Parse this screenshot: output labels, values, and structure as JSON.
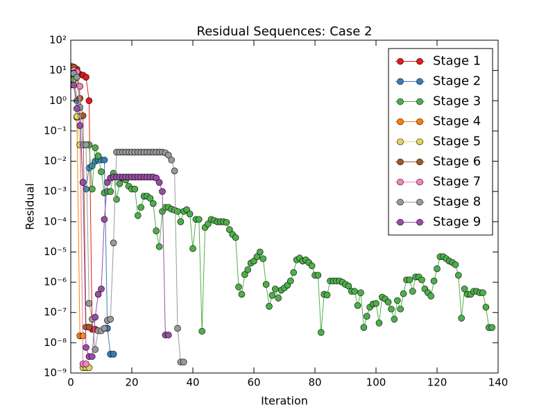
{
  "chart_data": {
    "type": "line",
    "title": "Residual Sequences: Case 2",
    "x_label": "Iteration",
    "y_label": "Residual",
    "log_y": true,
    "legend": "upper right",
    "xlim": [
      0,
      140
    ],
    "xticks": [
      0,
      20,
      40,
      60,
      80,
      100,
      120,
      140
    ],
    "ylim": [
      1e-09,
      100
    ],
    "yticks": [
      {
        "value": 1e-09,
        "label": "10⁻⁹"
      },
      {
        "value": 1e-08,
        "label": "10⁻⁸"
      },
      {
        "value": 1e-07,
        "label": "10⁻⁷"
      },
      {
        "value": 1e-06,
        "label": "10⁻⁶"
      },
      {
        "value": 1e-05,
        "label": "10⁻⁵"
      },
      {
        "value": 0.0001,
        "label": "10⁻⁴"
      },
      {
        "value": 0.001,
        "label": "10⁻³"
      },
      {
        "value": 0.01,
        "label": "10⁻²"
      },
      {
        "value": 0.1,
        "label": "10⁻¹"
      },
      {
        "value": 1,
        "label": "10⁰"
      },
      {
        "value": 10,
        "label": "10¹"
      },
      {
        "value": 100,
        "label": "10²"
      }
    ],
    "series": [
      {
        "name": "Stage 1",
        "color": "#e41a1c",
        "values": [
          13,
          13,
          11,
          7.5,
          7,
          6,
          1.0,
          2.8e-08,
          2.8e-08
        ]
      },
      {
        "name": "Stage 2",
        "color": "#377eb8",
        "values": [
          10,
          8,
          1.0,
          0.3,
          0.002,
          0.0012,
          0.006,
          0.007,
          0.01,
          0.011,
          0.011,
          0.011,
          3e-08,
          4.2e-09,
          4.2e-09
        ]
      },
      {
        "name": "Stage 3",
        "color": "#4daf4a",
        "values": [
          5,
          5,
          0.28,
          0.035,
          0.035,
          0.035,
          0.035,
          0.0012,
          0.028,
          0.015,
          0.0045,
          0.0009,
          0.001,
          0.001,
          0.004,
          0.00055,
          0.0018,
          0.0028,
          0.0024,
          0.0015,
          0.0012,
          0.0012,
          0.00016,
          0.0003,
          0.0007,
          0.0007,
          0.0006,
          0.0004,
          5e-05,
          1.5e-05,
          0.00022,
          0.0003,
          0.0003,
          0.00026,
          0.00024,
          0.00022,
          0.0001,
          0.00022,
          0.00025,
          0.00018,
          1.3e-05,
          0.00012,
          0.00012,
          2.4e-08,
          6.5e-05,
          8.5e-05,
          0.00012,
          0.00011,
          0.0001,
          0.0001,
          0.0001,
          9.5e-05,
          5.5e-05,
          3.8e-05,
          3e-05,
          7e-07,
          4e-07,
          1.8e-06,
          2.6e-06,
          4.3e-06,
          5e-06,
          7e-06,
          1e-05,
          6e-06,
          8.5e-07,
          1.6e-07,
          3.7e-07,
          6e-07,
          3e-07,
          5.5e-07,
          6.5e-07,
          8e-07,
          1.1e-06,
          2.1e-06,
          5.5e-06,
          6.3e-06,
          5e-06,
          5.5e-06,
          4.5e-06,
          3.5e-06,
          1.7e-06,
          1.7e-06,
          2.2e-08,
          4e-07,
          3.8e-07,
          1.1e-06,
          1.1e-06,
          1.1e-06,
          1.1e-06,
          1e-06,
          8.5e-07,
          7.5e-07,
          5e-07,
          5e-07,
          1.7e-07,
          4.5e-07,
          3.2e-08,
          7.5e-08,
          1.5e-07,
          1.9e-07,
          2e-07,
          4.5e-08,
          3.2e-07,
          2.8e-07,
          2.2e-07,
          1.3e-07,
          6e-08,
          2.5e-07,
          1.3e-07,
          4.2e-07,
          1.2e-06,
          1.2e-06,
          5e-07,
          1.5e-06,
          1.5e-06,
          1.2e-06,
          6e-07,
          4.5e-07,
          3.5e-07,
          1.1e-06,
          2.8e-06,
          7e-06,
          7e-06,
          6e-06,
          5e-06,
          4.5e-06,
          3.8e-06,
          1.7e-06,
          6.5e-08,
          6e-07,
          4e-07,
          4e-07,
          5e-07,
          5e-07,
          4.5e-07,
          4.5e-07,
          1.5e-07,
          3.2e-08,
          3.2e-08
        ]
      },
      {
        "name": "Stage 4",
        "color": "#ff7f00",
        "values": [
          13,
          12,
          0.3,
          1.7e-08,
          1.7e-08
        ]
      },
      {
        "name": "Stage 5",
        "color": "#e6d55c",
        "values": [
          10,
          10,
          0.3,
          0.035,
          1.5e-09,
          1.5e-09,
          1.5e-09
        ]
      },
      {
        "name": "Stage 6",
        "color": "#a65628",
        "values": [
          14,
          13,
          9,
          1.2,
          0.32,
          3.3e-08,
          3.3e-08
        ]
      },
      {
        "name": "Stage 7",
        "color": "#f781bf",
        "values": [
          10,
          10,
          9,
          3,
          2e-09,
          2e-09
        ]
      },
      {
        "name": "Stage 8",
        "color": "#999999",
        "values": [
          8,
          8,
          6,
          0.6,
          0.035,
          0.035,
          2e-07,
          6e-08,
          6e-09,
          2.5e-08,
          2.5e-08,
          3e-08,
          5.5e-08,
          6e-08,
          2e-05,
          0.02,
          0.02,
          0.02,
          0.02,
          0.02,
          0.02,
          0.02,
          0.02,
          0.02,
          0.02,
          0.02,
          0.02,
          0.02,
          0.02,
          0.02,
          0.02,
          0.019,
          0.016,
          0.011,
          0.0048,
          3e-08,
          2.3e-09,
          2.3e-09
        ]
      },
      {
        "name": "Stage 9",
        "color": "#984ea3",
        "values": [
          3.3,
          3.3,
          0.55,
          0.15,
          0.002,
          7e-09,
          3.5e-09,
          3.5e-09,
          7e-08,
          4e-07,
          6e-07,
          0.00012,
          0.002,
          0.0028,
          0.003,
          0.003,
          0.003,
          0.003,
          0.003,
          0.003,
          0.003,
          0.003,
          0.003,
          0.003,
          0.003,
          0.003,
          0.003,
          0.003,
          0.0028,
          0.002,
          0.001,
          1.8e-08,
          1.8e-08
        ]
      }
    ]
  }
}
